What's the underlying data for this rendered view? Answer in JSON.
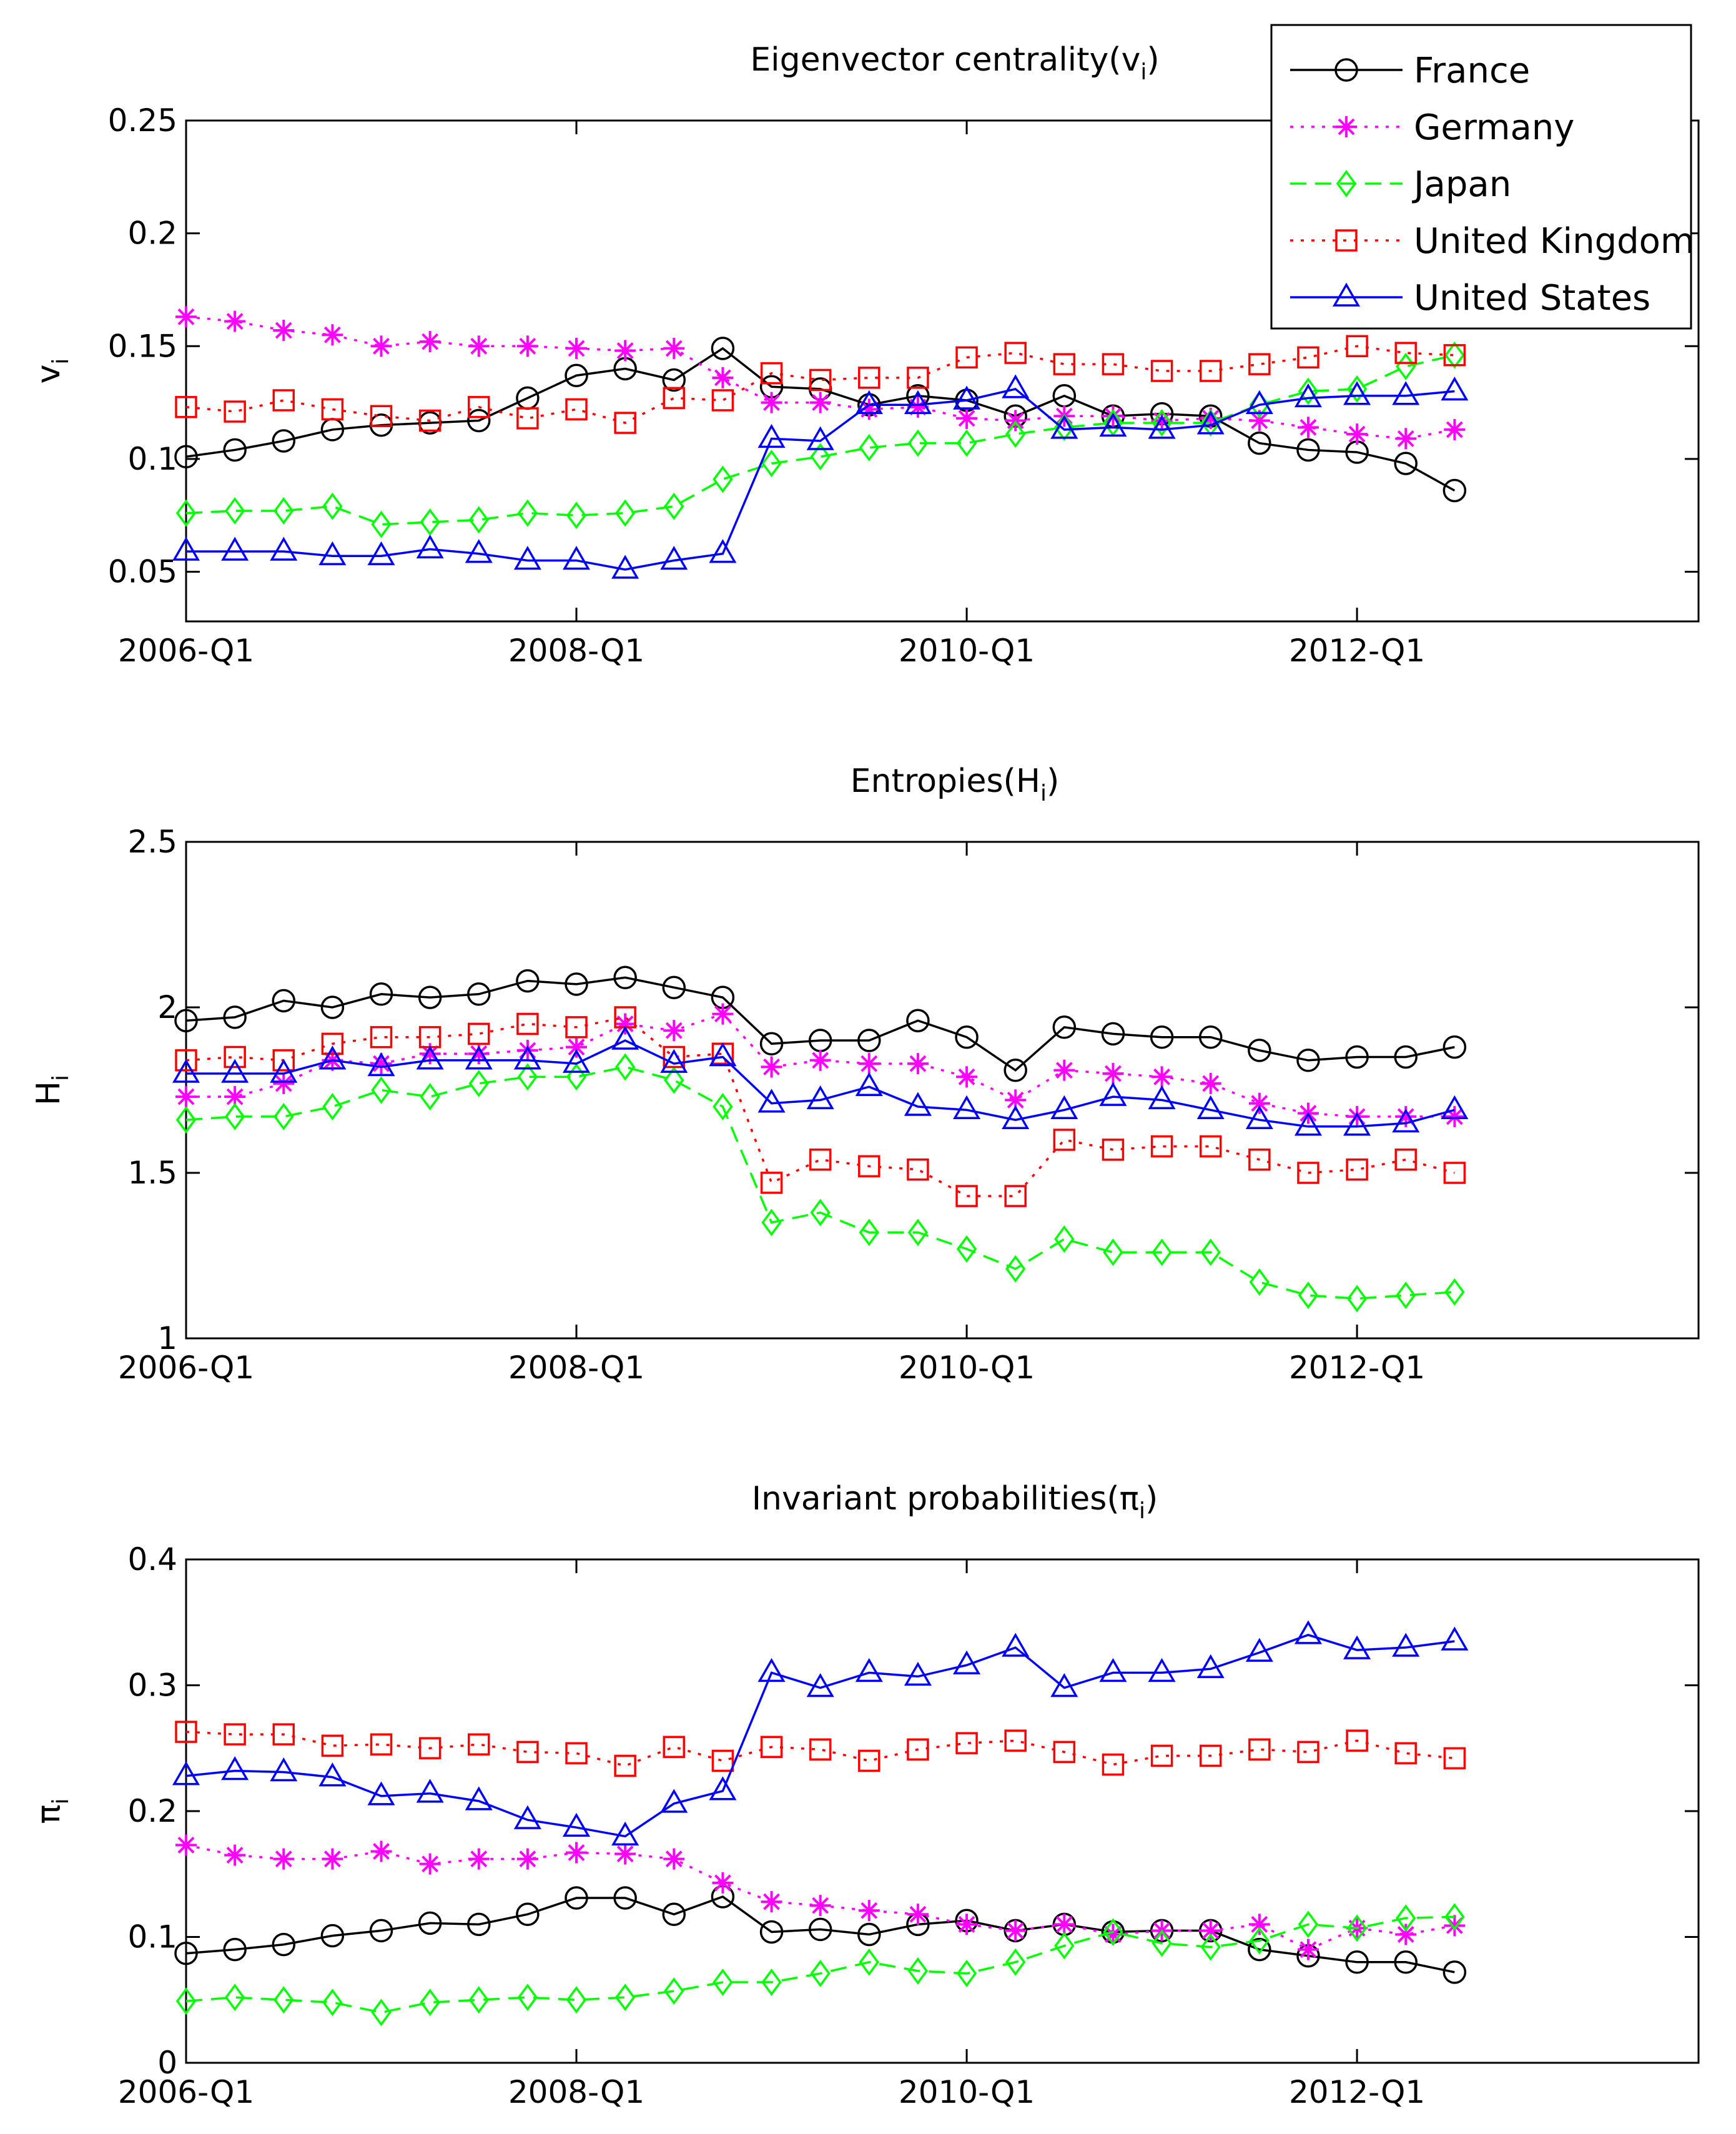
{
  "chart_data": [
    {
      "type": "line",
      "title": "Eigenvector centrality(v",
      "title_sub": "i",
      "title_end": ")",
      "ylabel": "v",
      "ylabel_sub": "i",
      "ylim": [
        0.028,
        0.25
      ],
      "yticks": [
        0.05,
        0.1,
        0.15,
        0.2,
        0.25
      ],
      "ytick_labels": [
        "0.05",
        "0.1",
        "0.15",
        "0.2",
        "0.25"
      ],
      "xlim": [
        2006.0,
        2013.75
      ],
      "xticks": [
        2006.0,
        2008.0,
        2010.0,
        2012.0
      ],
      "xtick_labels": [
        "2006-Q1",
        "2008-Q1",
        "2010-Q1",
        "2012-Q1"
      ],
      "legend_location": "top-right",
      "series": [
        {
          "name": "France",
          "color": "#000000",
          "marker": "circle",
          "linestyle": "solid",
          "values": [
            0.101,
            0.104,
            0.108,
            0.113,
            0.115,
            0.116,
            0.117,
            0.127,
            0.137,
            0.14,
            0.135,
            0.149,
            0.132,
            0.131,
            0.124,
            0.128,
            0.126,
            0.119,
            0.128,
            0.119,
            0.12,
            0.119,
            0.107,
            0.104,
            0.103,
            0.098,
            0.086
          ]
        },
        {
          "name": "Germany",
          "color": "#ff00ff",
          "marker": "star",
          "linestyle": "dotted",
          "values": [
            0.163,
            0.161,
            0.157,
            0.155,
            0.15,
            0.152,
            0.15,
            0.15,
            0.149,
            0.148,
            0.149,
            0.136,
            0.125,
            0.125,
            0.122,
            0.123,
            0.118,
            0.117,
            0.119,
            0.119,
            0.117,
            0.118,
            0.117,
            0.114,
            0.111,
            0.109,
            0.113
          ]
        },
        {
          "name": "Japan",
          "color": "#00ff00",
          "marker": "diamond",
          "linestyle": "dashed",
          "values": [
            0.076,
            0.077,
            0.077,
            0.079,
            0.071,
            0.072,
            0.073,
            0.076,
            0.075,
            0.076,
            0.079,
            0.091,
            0.098,
            0.101,
            0.105,
            0.107,
            0.107,
            0.111,
            0.114,
            0.116,
            0.116,
            0.116,
            0.124,
            0.13,
            0.131,
            0.141,
            0.146
          ]
        },
        {
          "name": "United Kingdom",
          "color": "#ff0000",
          "marker": "square",
          "linestyle": "dotted",
          "values": [
            0.123,
            0.121,
            0.126,
            0.122,
            0.119,
            0.117,
            0.123,
            0.118,
            0.122,
            0.116,
            0.127,
            0.126,
            0.138,
            0.135,
            0.136,
            0.136,
            0.145,
            0.147,
            0.142,
            0.142,
            0.139,
            0.139,
            0.142,
            0.145,
            0.15,
            0.147,
            0.146
          ]
        },
        {
          "name": "United States",
          "color": "#0000ff",
          "marker": "triangle",
          "linestyle": "solid",
          "values": [
            0.059,
            0.059,
            0.059,
            0.057,
            0.057,
            0.06,
            0.058,
            0.055,
            0.055,
            0.051,
            0.055,
            0.058,
            0.109,
            0.108,
            0.124,
            0.124,
            0.126,
            0.131,
            0.113,
            0.114,
            0.113,
            0.115,
            0.124,
            0.127,
            0.128,
            0.128,
            0.13
          ]
        }
      ]
    },
    {
      "type": "line",
      "title": "Entropies(H",
      "title_sub": "i",
      "title_end": ")",
      "ylabel": "H",
      "ylabel_sub": "i",
      "ylim": [
        1.0,
        2.5
      ],
      "yticks": [
        1.0,
        1.5,
        2.0,
        2.5
      ],
      "ytick_labels": [
        "1",
        "1.5",
        "2",
        "2.5"
      ],
      "xlim": [
        2006.0,
        2013.75
      ],
      "xticks": [
        2006.0,
        2008.0,
        2010.0,
        2012.0
      ],
      "xtick_labels": [
        "2006-Q1",
        "2008-Q1",
        "2010-Q1",
        "2012-Q1"
      ],
      "series": [
        {
          "name": "France",
          "color": "#000000",
          "marker": "circle",
          "linestyle": "solid",
          "values": [
            1.96,
            1.97,
            2.02,
            2.0,
            2.04,
            2.03,
            2.04,
            2.08,
            2.07,
            2.09,
            2.06,
            2.03,
            1.89,
            1.9,
            1.9,
            1.96,
            1.91,
            1.81,
            1.94,
            1.92,
            1.91,
            1.91,
            1.87,
            1.84,
            1.85,
            1.85,
            1.88
          ]
        },
        {
          "name": "Germany",
          "color": "#ff00ff",
          "marker": "star",
          "linestyle": "dotted",
          "values": [
            1.73,
            1.73,
            1.77,
            1.84,
            1.83,
            1.86,
            1.86,
            1.87,
            1.88,
            1.95,
            1.93,
            1.98,
            1.82,
            1.84,
            1.83,
            1.83,
            1.79,
            1.72,
            1.81,
            1.8,
            1.79,
            1.77,
            1.71,
            1.68,
            1.67,
            1.67,
            1.67
          ]
        },
        {
          "name": "Japan",
          "color": "#00ff00",
          "marker": "diamond",
          "linestyle": "dashed",
          "values": [
            1.66,
            1.67,
            1.67,
            1.7,
            1.75,
            1.73,
            1.77,
            1.79,
            1.79,
            1.82,
            1.78,
            1.7,
            1.35,
            1.38,
            1.32,
            1.32,
            1.27,
            1.21,
            1.3,
            1.26,
            1.26,
            1.26,
            1.17,
            1.13,
            1.12,
            1.13,
            1.14
          ]
        },
        {
          "name": "United Kingdom",
          "color": "#ff0000",
          "marker": "square",
          "linestyle": "dotted",
          "values": [
            1.84,
            1.85,
            1.84,
            1.89,
            1.91,
            1.91,
            1.92,
            1.95,
            1.94,
            1.97,
            1.85,
            1.86,
            1.47,
            1.54,
            1.52,
            1.51,
            1.43,
            1.43,
            1.6,
            1.57,
            1.58,
            1.58,
            1.54,
            1.5,
            1.51,
            1.54,
            1.5
          ]
        },
        {
          "name": "United States",
          "color": "#0000ff",
          "marker": "triangle",
          "linestyle": "solid",
          "values": [
            1.8,
            1.8,
            1.8,
            1.84,
            1.82,
            1.84,
            1.84,
            1.84,
            1.83,
            1.9,
            1.83,
            1.85,
            1.71,
            1.72,
            1.76,
            1.7,
            1.69,
            1.66,
            1.69,
            1.73,
            1.72,
            1.69,
            1.66,
            1.64,
            1.64,
            1.65,
            1.69
          ]
        }
      ]
    },
    {
      "type": "line",
      "title": "Invariant probabilities(π",
      "title_sub": "i",
      "title_end": ")",
      "ylabel": "π",
      "ylabel_sub": "i",
      "ylim": [
        0.0,
        0.4
      ],
      "yticks": [
        0.0,
        0.1,
        0.2,
        0.3,
        0.4
      ],
      "ytick_labels": [
        "0",
        "0.1",
        "0.2",
        "0.3",
        "0.4"
      ],
      "xlim": [
        2006.0,
        2013.75
      ],
      "xticks": [
        2006.0,
        2008.0,
        2010.0,
        2012.0
      ],
      "xtick_labels": [
        "2006-Q1",
        "2008-Q1",
        "2010-Q1",
        "2012-Q1"
      ],
      "series": [
        {
          "name": "France",
          "color": "#000000",
          "marker": "circle",
          "linestyle": "solid",
          "values": [
            0.087,
            0.09,
            0.094,
            0.101,
            0.105,
            0.111,
            0.11,
            0.118,
            0.131,
            0.131,
            0.118,
            0.132,
            0.104,
            0.106,
            0.102,
            0.11,
            0.113,
            0.105,
            0.11,
            0.104,
            0.105,
            0.105,
            0.09,
            0.085,
            0.08,
            0.08,
            0.072
          ]
        },
        {
          "name": "Germany",
          "color": "#ff00ff",
          "marker": "star",
          "linestyle": "dotted",
          "values": [
            0.173,
            0.165,
            0.162,
            0.162,
            0.168,
            0.158,
            0.162,
            0.162,
            0.167,
            0.166,
            0.162,
            0.143,
            0.128,
            0.125,
            0.121,
            0.118,
            0.11,
            0.105,
            0.11,
            0.102,
            0.105,
            0.105,
            0.11,
            0.09,
            0.107,
            0.102,
            0.109
          ]
        },
        {
          "name": "Japan",
          "color": "#00ff00",
          "marker": "diamond",
          "linestyle": "dashed",
          "values": [
            0.049,
            0.052,
            0.05,
            0.048,
            0.04,
            0.048,
            0.05,
            0.052,
            0.05,
            0.052,
            0.057,
            0.064,
            0.064,
            0.071,
            0.08,
            0.073,
            0.071,
            0.08,
            0.093,
            0.104,
            0.095,
            0.092,
            0.097,
            0.11,
            0.107,
            0.115,
            0.116
          ]
        },
        {
          "name": "United Kingdom",
          "color": "#ff0000",
          "marker": "square",
          "linestyle": "dotted",
          "values": [
            0.263,
            0.261,
            0.261,
            0.252,
            0.253,
            0.25,
            0.253,
            0.247,
            0.246,
            0.236,
            0.251,
            0.24,
            0.251,
            0.249,
            0.24,
            0.249,
            0.254,
            0.256,
            0.247,
            0.237,
            0.244,
            0.244,
            0.249,
            0.247,
            0.256,
            0.246,
            0.242
          ]
        },
        {
          "name": "United States",
          "color": "#0000ff",
          "marker": "triangle",
          "linestyle": "solid",
          "values": [
            0.228,
            0.232,
            0.231,
            0.227,
            0.212,
            0.214,
            0.208,
            0.193,
            0.187,
            0.18,
            0.206,
            0.216,
            0.31,
            0.298,
            0.31,
            0.307,
            0.316,
            0.33,
            0.298,
            0.31,
            0.31,
            0.313,
            0.326,
            0.34,
            0.328,
            0.33,
            0.335
          ]
        }
      ]
    }
  ]
}
